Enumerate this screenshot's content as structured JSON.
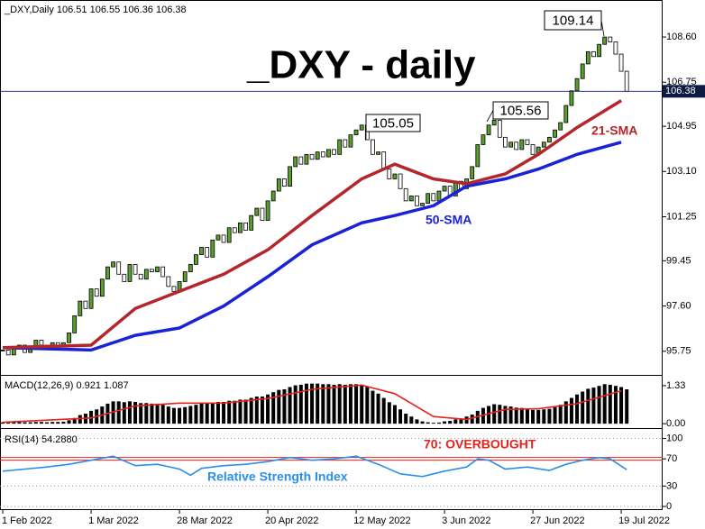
{
  "chart_data": [
    {
      "type": "candlestick",
      "title": "_DXY - daily",
      "label": "_DXY,Daily  106.51 106.55 106.36 106.38",
      "ylim": [
        94.82,
        110.04
      ],
      "xlim": [
        -0.5,
        119.5
      ],
      "yticks": [
        95.75,
        {
          "value": 97.6,
          "label": "97.60"
        },
        99.45,
        101.25,
        {
          "value": 103.1,
          "label": "103.10"
        },
        104.95,
        106.75,
        {
          "value": 108.6,
          "label": "108.60"
        }
      ],
      "price_line": 106.38,
      "up_color": "#5a9e2f",
      "down_color": "#ffffff",
      "annotations": [
        "105.05",
        "105.56",
        "109.14"
      ],
      "series": [
        {
          "x": [
            0,
            1,
            2,
            3,
            4,
            5,
            6,
            7,
            8,
            9,
            10,
            11,
            12,
            13,
            14,
            15,
            16,
            17,
            18,
            19,
            20,
            21,
            22,
            23,
            24,
            25,
            26,
            27,
            28,
            29,
            30,
            31,
            32,
            33,
            34,
            35,
            36,
            37,
            38,
            39,
            40,
            41,
            42,
            43,
            44,
            45,
            46,
            47,
            48,
            49,
            50,
            51,
            52,
            53,
            54,
            55,
            56,
            57,
            58,
            59,
            60,
            61,
            62,
            63,
            64,
            65,
            66,
            67,
            68,
            69,
            70,
            71,
            72,
            73,
            74,
            75,
            76,
            77,
            78,
            79,
            80,
            81,
            82,
            83,
            84,
            85,
            86,
            87,
            88,
            89,
            90,
            91,
            92,
            93,
            94,
            95,
            96,
            97,
            98,
            99,
            100,
            101,
            102,
            103,
            104,
            105,
            106,
            107,
            108,
            109,
            110,
            111,
            112,
            113
          ],
          "values": [
            95.8,
            95.6,
            95.9,
            96.0,
            95.7,
            95.9,
            96.2,
            96.0,
            95.9,
            96.1,
            96.0,
            96.1,
            96.5,
            97.2,
            97.8,
            97.5,
            98.3,
            98.0,
            98.7,
            99.2,
            99.4,
            98.9,
            98.6,
            99.3,
            98.9,
            98.7,
            99.1,
            99.0,
            99.2,
            98.8,
            98.4,
            98.2,
            98.6,
            99.0,
            99.3,
            99.7,
            100.0,
            99.6,
            100.3,
            100.5,
            100.2,
            100.8,
            100.6,
            101.0,
            100.7,
            101.3,
            101.6,
            101.1,
            101.9,
            102.3,
            102.8,
            102.5,
            103.3,
            103.7,
            103.4,
            103.8,
            103.6,
            103.9,
            103.7,
            104.0,
            103.8,
            104.4,
            104.1,
            104.6,
            104.8,
            105.0,
            104.4,
            103.8,
            103.9,
            103.2,
            102.8,
            103.0,
            102.4,
            101.9,
            102.1,
            101.7,
            101.8,
            102.2,
            101.9,
            102.3,
            102.5,
            102.1,
            102.7,
            102.4,
            102.8,
            103.3,
            104.2,
            104.6,
            105.0,
            105.2,
            104.5,
            104.1,
            104.3,
            104.0,
            104.4,
            104.2,
            103.8,
            104.1,
            104.3,
            104.5,
            104.8,
            105.1,
            105.8,
            106.4,
            106.9,
            107.5,
            108.0,
            107.8,
            108.3,
            108.6,
            108.4,
            107.9,
            107.2,
            106.38
          ]
        },
        {
          "name": "21-SMA",
          "color": "#b3262a",
          "x": [
            0,
            16,
            24,
            32,
            40,
            48,
            56,
            65,
            71,
            78,
            84,
            91,
            97,
            104,
            112
          ],
          "values": [
            95.9,
            96.0,
            97.5,
            98.2,
            98.9,
            99.9,
            101.3,
            102.8,
            103.4,
            102.8,
            102.6,
            103.0,
            103.8,
            104.9,
            106.0
          ]
        },
        {
          "name": "50-SMA",
          "color": "#1a22d6",
          "x": [
            0,
            16,
            24,
            32,
            40,
            48,
            56,
            65,
            71,
            78,
            84,
            91,
            97,
            104,
            112
          ],
          "values": [
            95.9,
            95.8,
            96.4,
            96.7,
            97.6,
            98.8,
            100.1,
            101.0,
            101.3,
            101.7,
            102.5,
            102.8,
            103.2,
            103.8,
            104.3
          ]
        }
      ]
    },
    {
      "type": "macd",
      "label": "MACD(12,26,9) 0.921 1.087",
      "ylim": [
        -0.09,
        1.61
      ],
      "xlim": [
        -0.5,
        119.5
      ],
      "yticks": [
        1.33,
        {
          "value": 0,
          "label": "0.00"
        }
      ],
      "series": [
        {
          "color": "#000000",
          "x": [
            0,
            1,
            2,
            3,
            4,
            5,
            6,
            7,
            8,
            9,
            10,
            11,
            12,
            13,
            14,
            15,
            16,
            17,
            18,
            19,
            20,
            21,
            22,
            23,
            24,
            25,
            26,
            27,
            28,
            29,
            30,
            31,
            32,
            33,
            34,
            35,
            36,
            37,
            38,
            39,
            40,
            41,
            42,
            43,
            44,
            45,
            46,
            47,
            48,
            49,
            50,
            51,
            52,
            53,
            54,
            55,
            56,
            57,
            58,
            59,
            60,
            61,
            62,
            63,
            64,
            65,
            66,
            67,
            68,
            69,
            70,
            71,
            72,
            73,
            74,
            75,
            76,
            77,
            78,
            79,
            80,
            81,
            82,
            83,
            84,
            85,
            86,
            87,
            88,
            89,
            90,
            91,
            92,
            93,
            94,
            95,
            96,
            97,
            98,
            99,
            100,
            101,
            102,
            103,
            104,
            105,
            106,
            107,
            108,
            109,
            110,
            111,
            112,
            113
          ],
          "values": [
            0.05,
            0.04,
            0.05,
            0.06,
            0.05,
            0.05,
            0.06,
            0.06,
            0.05,
            0.06,
            0.06,
            0.07,
            0.12,
            0.2,
            0.3,
            0.35,
            0.45,
            0.5,
            0.6,
            0.7,
            0.78,
            0.78,
            0.75,
            0.78,
            0.76,
            0.72,
            0.72,
            0.7,
            0.7,
            0.66,
            0.6,
            0.55,
            0.55,
            0.58,
            0.62,
            0.66,
            0.7,
            0.7,
            0.74,
            0.76,
            0.76,
            0.8,
            0.8,
            0.84,
            0.84,
            0.9,
            0.95,
            0.95,
            1.02,
            1.1,
            1.18,
            1.2,
            1.28,
            1.34,
            1.36,
            1.4,
            1.4,
            1.4,
            1.38,
            1.38,
            1.36,
            1.38,
            1.36,
            1.38,
            1.38,
            1.36,
            1.28,
            1.15,
            1.05,
            0.9,
            0.75,
            0.65,
            0.5,
            0.35,
            0.25,
            0.15,
            0.08,
            0.05,
            0.03,
            0.04,
            0.08,
            0.1,
            0.15,
            0.18,
            0.25,
            0.32,
            0.45,
            0.55,
            0.62,
            0.68,
            0.66,
            0.62,
            0.6,
            0.56,
            0.55,
            0.52,
            0.48,
            0.48,
            0.5,
            0.52,
            0.58,
            0.66,
            0.78,
            0.9,
            1.02,
            1.12,
            1.22,
            1.26,
            1.32,
            1.38,
            1.36,
            1.32,
            1.28,
            1.2
          ]
        },
        {
          "color": "#e8221c",
          "x": [
            0,
            16,
            24,
            32,
            40,
            48,
            56,
            65,
            71,
            78,
            84,
            91,
            97,
            104,
            112
          ],
          "values": [
            0.05,
            0.2,
            0.62,
            0.72,
            0.72,
            0.88,
            1.2,
            1.35,
            1.05,
            0.25,
            0.15,
            0.5,
            0.52,
            0.7,
            1.15
          ]
        }
      ]
    },
    {
      "type": "rsi",
      "label": "RSI(14) 54.2880",
      "ylim": [
        -4,
        110
      ],
      "xlim": [
        -0.5,
        119.5
      ],
      "yticks": [
        100,
        70,
        30,
        0
      ],
      "level": 70,
      "level_color": "#e8221c",
      "annotations": [
        "70: OVERBOUGHT",
        "Relative Strength Index"
      ],
      "xticks": [
        {
          "value": 0,
          "label": "1 Feb 2022"
        },
        {
          "value": 16,
          "label": "1 Mar 2022"
        },
        {
          "value": 32,
          "label": "28 Mar 2022"
        },
        {
          "value": 48,
          "label": "20 Apr 2022"
        },
        {
          "value": 64,
          "label": "12 May 2022"
        },
        {
          "value": 80,
          "label": "3 Jun 2022"
        },
        {
          "value": 96,
          "label": "27 Jun 2022"
        },
        {
          "value": 112,
          "label": "19 Jul 2022"
        }
      ],
      "series": [
        {
          "color": "#2a8fe8",
          "x": [
            0,
            4,
            8,
            12,
            16,
            20,
            24,
            28,
            32,
            34,
            36,
            40,
            44,
            48,
            52,
            56,
            60,
            64,
            68,
            72,
            76,
            80,
            84,
            86,
            88,
            91,
            95,
            99,
            102,
            105,
            108,
            110,
            113
          ],
          "values": [
            52,
            55,
            58,
            62,
            68,
            74,
            60,
            62,
            55,
            46,
            56,
            60,
            62,
            66,
            72,
            68,
            70,
            74,
            62,
            48,
            44,
            52,
            58,
            70,
            68,
            55,
            58,
            53,
            62,
            68,
            72,
            70,
            54
          ]
        }
      ]
    }
  ]
}
